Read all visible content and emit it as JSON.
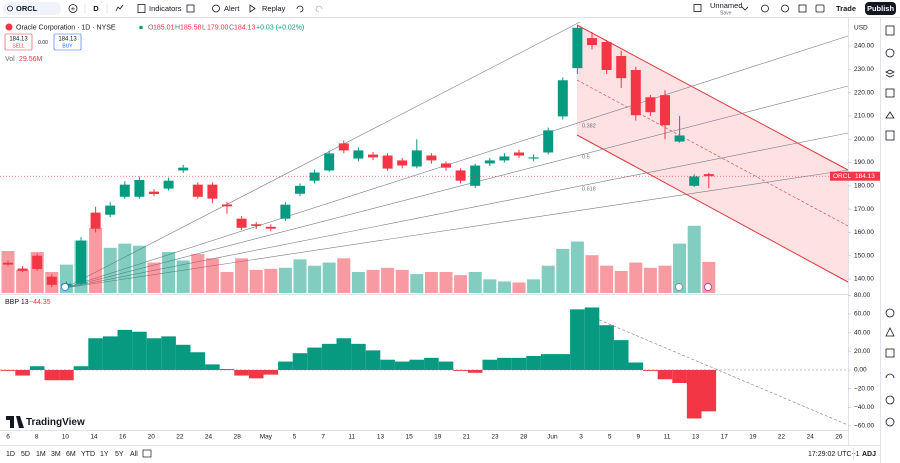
{
  "toolbar": {
    "symbol": "ORCL",
    "interval": "D",
    "indicators": "Indicators",
    "alert": "Alert",
    "replay": "Replay",
    "layout_name": "Unnamed",
    "save": "Save",
    "trade": "Trade",
    "publish": "Publish"
  },
  "legend": {
    "title": "Oracle Corporation · 1D · NYSE",
    "ohlc_letters": [
      "O",
      "H",
      "L",
      "C"
    ],
    "ohlc_values": [
      "185.01",
      "185.58",
      "179.00",
      "184.13"
    ],
    "change": "+0.03 (+0.02%)",
    "sell_price": "184.13",
    "sell": "SELL",
    "spread": "0.00",
    "buy_price": "184.13",
    "buy": "BUY",
    "volume_label": "Vol",
    "volume_value": "29.56M",
    "indicator_name": "BBP 13",
    "indicator_value": "−44.35"
  },
  "price_chart": {
    "currency": "USD",
    "symbol_badge": "ORCL",
    "last_price": 184.13,
    "up_color": "#089981",
    "down_color": "#f23645",
    "ylim": [
      134,
      250.3
    ],
    "yticks": [
      {
        "value": 240,
        "label": "240.00"
      },
      {
        "value": 230,
        "label": "230.00"
      },
      {
        "value": 220,
        "label": "220.00"
      },
      {
        "value": 210,
        "label": "210.00"
      },
      {
        "value": 200,
        "label": "200.00"
      },
      {
        "value": 190,
        "label": "190.00"
      },
      {
        "value": 180,
        "label": "180.00"
      },
      {
        "value": 170,
        "label": "170.00"
      },
      {
        "value": 160,
        "label": "160.00"
      },
      {
        "value": 150,
        "label": "150.00"
      },
      {
        "value": 140,
        "label": "140.00"
      }
    ],
    "candles": {
      "open": [
        147,
        144.5,
        150,
        141,
        137,
        138,
        168.5,
        167.6,
        175.3,
        175.3,
        177.5,
        178.8,
        186.6,
        180.5,
        180.5,
        172,
        165.9,
        163.5,
        162.4,
        165.9,
        176.6,
        182.2,
        186.6,
        198.2,
        191.7,
        193.4,
        193,
        190.9,
        188.3,
        193,
        189.6,
        186.6,
        180,
        189.6,
        190.9,
        194.3,
        191.7,
        194.3,
        209.8,
        230.5,
        243.4,
        241.7,
        235.7,
        229.7,
        218,
        218.9,
        199,
        180,
        185.01
      ],
      "high": [
        148,
        145.5,
        151,
        142,
        139,
        158,
        171,
        173,
        182,
        184,
        178.5,
        183.5,
        189,
        181.5,
        181.5,
        173,
        167,
        164.5,
        163.5,
        173,
        181,
        187,
        195,
        199.5,
        196.5,
        194.5,
        194,
        192,
        200,
        194,
        190.5,
        187.5,
        189.5,
        192,
        194,
        195.5,
        193.5,
        205,
        226.5,
        249,
        246,
        242.5,
        238,
        231,
        219,
        221,
        210,
        185,
        185.58
      ],
      "low": [
        145.5,
        143,
        143.5,
        136.5,
        136.5,
        137.5,
        160,
        166.5,
        174.5,
        174.5,
        175.5,
        178,
        185.5,
        174.5,
        172.5,
        168,
        161,
        161.5,
        160.5,
        165,
        175.5,
        181,
        186,
        194,
        190.5,
        191,
        186.5,
        187.5,
        187.5,
        189.5,
        186.5,
        181,
        179,
        188.5,
        190,
        192,
        190.5,
        193.5,
        208.5,
        228,
        238.5,
        228,
        222,
        208,
        210,
        200,
        198.5,
        179.5,
        179.0
      ],
      "close": [
        146.2,
        143.5,
        144.3,
        137.5,
        138,
        156.5,
        161.6,
        171.5,
        180.5,
        182.5,
        176.5,
        182.2,
        187.8,
        175.3,
        174.5,
        171.2,
        162,
        162.8,
        161.6,
        171.9,
        180,
        185.7,
        193.9,
        195.2,
        195.2,
        192.2,
        187.4,
        188.7,
        195.2,
        190.9,
        187.8,
        182.2,
        188.7,
        190.9,
        192.6,
        193,
        192.2,
        203.8,
        225.3,
        247.8,
        240.4,
        229.7,
        226.2,
        210.3,
        211.6,
        206,
        201.6,
        184,
        184.13
      ]
    },
    "volume_ylim": [
      0,
      258
    ],
    "volume": [
      40,
      22,
      39,
      20,
      27,
      50,
      62,
      43,
      47,
      45,
      29,
      39,
      31,
      37,
      33,
      20,
      33,
      22,
      23,
      24,
      32,
      26,
      29,
      33,
      20,
      22,
      24,
      22,
      18,
      20,
      20,
      17,
      20,
      13,
      11,
      10,
      13,
      26,
      42,
      49,
      36,
      26,
      21,
      29,
      24,
      26,
      47,
      64,
      29.56
    ],
    "fib_levels": [
      0.382,
      0.5,
      0.618
    ]
  },
  "indicator_chart": {
    "ylim": [
      -66.5,
      79.3
    ],
    "yticks": [
      {
        "value": 80,
        "label": "80.00"
      },
      {
        "value": 60,
        "label": "60.00"
      },
      {
        "value": 40,
        "label": "40.00"
      },
      {
        "value": 20,
        "label": "20.00"
      },
      {
        "value": 0,
        "label": "0.00"
      },
      {
        "value": -20,
        "label": "−20.00"
      },
      {
        "value": -40,
        "label": "−40.00"
      },
      {
        "value": -60,
        "label": "−60.00"
      }
    ],
    "values": [
      -1,
      -6,
      4,
      -11,
      -11,
      4,
      34,
      36,
      43,
      41,
      34,
      36,
      27,
      19,
      6,
      1,
      -6,
      -9,
      -5,
      9,
      18,
      24,
      28,
      34,
      28,
      21,
      11,
      9,
      11,
      13,
      9,
      -1,
      -3,
      11,
      13,
      13,
      15,
      17,
      17,
      65,
      67,
      48,
      32,
      8,
      -1,
      -10,
      -14,
      -52,
      -44.35
    ]
  },
  "x_axis_labels": [
    "6",
    "8",
    "10",
    "14",
    "16",
    "20",
    "22",
    "24",
    "28",
    "May",
    "5",
    "7",
    "11",
    "13",
    "15",
    "19",
    "21",
    "23",
    "28",
    "Jun",
    "3",
    "5",
    "9",
    "11",
    "13",
    "17",
    "19",
    "22",
    "24",
    "26"
  ],
  "brand": "TradingView",
  "bottom_bar": {
    "ranges": [
      "1D",
      "5D",
      "1M",
      "3M",
      "6M",
      "YTD",
      "1Y",
      "5Y",
      "All"
    ],
    "clock": "17:29:02 UTC+1",
    "adjust": "ADJ"
  }
}
